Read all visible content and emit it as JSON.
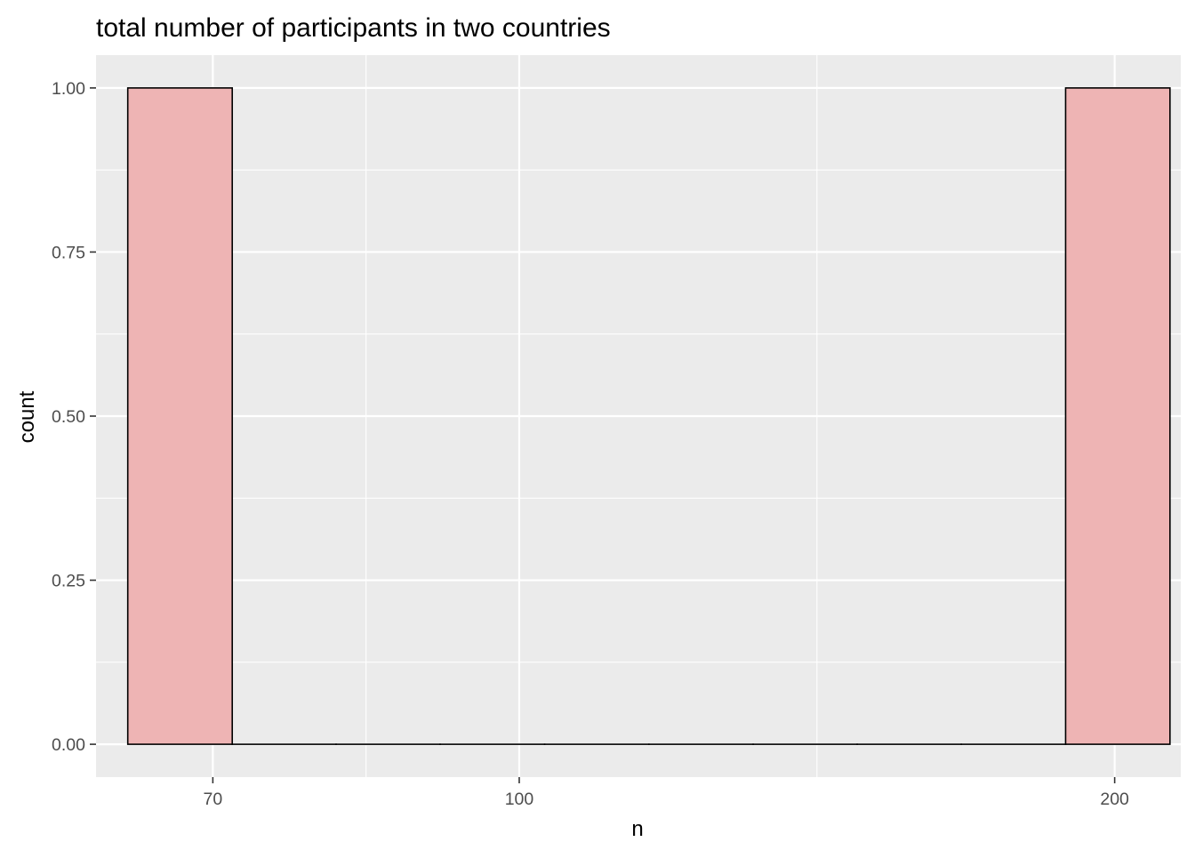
{
  "chart_data": {
    "type": "bar",
    "title": "total number of participants in two countries",
    "xlabel": "n",
    "ylabel": "count",
    "x_scale": "log10",
    "x_ticks": [
      70,
      100,
      200
    ],
    "x_tick_labels": [
      "70",
      "100",
      "200"
    ],
    "y_ticks": [
      0,
      0.25,
      0.5,
      0.75,
      1
    ],
    "y_tick_labels": [
      "0.00",
      "0.25",
      "0.50",
      "0.75",
      "1.00"
    ],
    "ylim": [
      -0.05,
      1.05
    ],
    "xlim": [
      61.1,
      216
    ],
    "grid": true,
    "legend": "none",
    "bins": [
      {
        "xmin": 63.4,
        "xmax": 71.6,
        "count": 1
      },
      {
        "xmin": 71.6,
        "xmax": 80.8,
        "count": 0
      },
      {
        "xmin": 80.8,
        "xmax": 91.2,
        "count": 0
      },
      {
        "xmin": 91.2,
        "xmax": 103.0,
        "count": 0
      },
      {
        "xmin": 103.0,
        "xmax": 116.3,
        "count": 0
      },
      {
        "xmin": 116.3,
        "xmax": 131.3,
        "count": 0
      },
      {
        "xmin": 131.3,
        "xmax": 148.2,
        "count": 0
      },
      {
        "xmin": 148.2,
        "xmax": 167.3,
        "count": 0
      },
      {
        "xmin": 167.3,
        "xmax": 188.9,
        "count": 0
      },
      {
        "xmin": 188.9,
        "xmax": 213.3,
        "count": 1
      }
    ],
    "colors": {
      "bar_fill": "#eeb4b4",
      "bar_outline": "#000000",
      "panel_background": "#ebebeb",
      "grid": "#ffffff"
    }
  }
}
